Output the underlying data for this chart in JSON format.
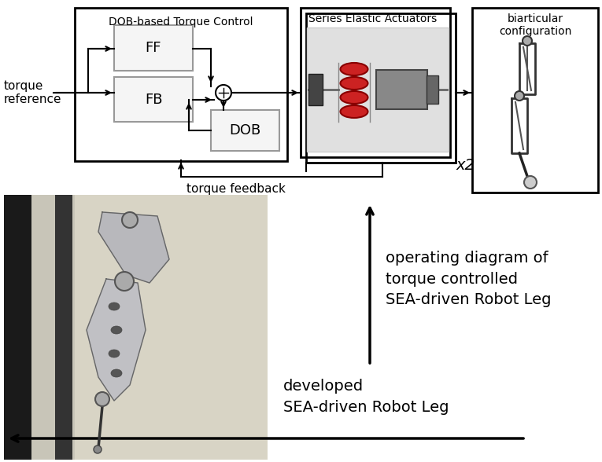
{
  "bg_color": "#ffffff",
  "text_color": "#000000",
  "box_color": "#000000",
  "inner_box_color": "#aaaaaa",
  "title": "",
  "torque_ref_label": "torque\nreference",
  "torque_fb_label": "torque feedback",
  "dob_title": "DOB-based Torque Control",
  "sea_title": "Series Elastic Actuators",
  "biartic_title": "biarticular\nconfiguration",
  "x2_label": "x2",
  "ff_label": "FF",
  "fb_label": "FB",
  "dob_label": "DOB",
  "op_diagram_label": "operating diagram of\ntorque controlled\nSEA-driven Robot Leg",
  "dev_label": "developed\nSEA-driven Robot Leg",
  "figsize": [
    7.65,
    5.88
  ],
  "dpi": 100
}
